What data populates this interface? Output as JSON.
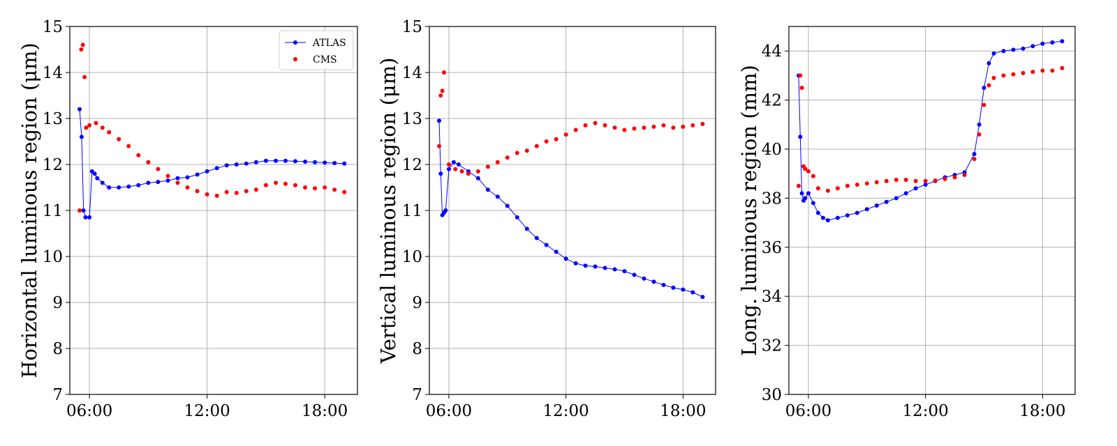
{
  "colors": {
    "ATLAS": "#0000ff",
    "CMS": "#ff0000",
    "grid": "#b0b0b0",
    "axes": "#000000"
  },
  "legend": {
    "placement": "top-right",
    "entries": [
      "ATLAS",
      "CMS"
    ]
  },
  "chart_data": [
    {
      "type": "scatter",
      "panel": "left",
      "ylabel": "Horizontal luminous region (μm)",
      "xlabel": "",
      "xlim": [
        "05:00",
        "19:40"
      ],
      "ylim": [
        7,
        15
      ],
      "xticks": [
        "06:00",
        "12:00",
        "18:00"
      ],
      "yticks": [
        "7",
        "8",
        "9",
        "10",
        "11",
        "12",
        "13",
        "14",
        "15"
      ],
      "grid": true,
      "legend": true,
      "series": [
        {
          "name": "ATLAS",
          "style": "line+markers",
          "x": [
            "05:30",
            "05:36",
            "05:42",
            "05:48",
            "06:00",
            "06:08",
            "06:16",
            "06:24",
            "06:40",
            "07:00",
            "07:30",
            "08:00",
            "08:30",
            "09:00",
            "09:30",
            "10:00",
            "10:30",
            "11:00",
            "11:30",
            "12:00",
            "12:30",
            "13:00",
            "13:30",
            "14:00",
            "14:30",
            "15:00",
            "15:30",
            "16:00",
            "16:30",
            "17:00",
            "17:30",
            "18:00",
            "18:30",
            "19:00"
          ],
          "y": [
            13.2,
            12.6,
            11.0,
            10.85,
            10.85,
            11.85,
            11.8,
            11.7,
            11.6,
            11.5,
            11.5,
            11.52,
            11.55,
            11.6,
            11.62,
            11.65,
            11.7,
            11.72,
            11.78,
            11.85,
            11.92,
            11.98,
            12.0,
            12.02,
            12.05,
            12.08,
            12.08,
            12.08,
            12.07,
            12.06,
            12.05,
            12.04,
            12.03,
            12.02
          ]
        },
        {
          "name": "CMS",
          "style": "markers",
          "x": [
            "05:30",
            "05:35",
            "05:40",
            "05:45",
            "05:50",
            "06:00",
            "06:20",
            "06:40",
            "07:00",
            "07:30",
            "08:00",
            "08:30",
            "09:00",
            "09:30",
            "10:00",
            "10:30",
            "11:00",
            "11:30",
            "12:00",
            "12:30",
            "13:00",
            "13:30",
            "14:00",
            "14:30",
            "15:00",
            "15:30",
            "16:00",
            "16:30",
            "17:00",
            "17:30",
            "18:00",
            "18:30",
            "19:00"
          ],
          "y": [
            11.0,
            14.5,
            14.6,
            13.9,
            12.8,
            12.85,
            12.9,
            12.8,
            12.7,
            12.55,
            12.4,
            12.2,
            12.05,
            11.9,
            11.75,
            11.6,
            11.5,
            11.42,
            11.35,
            11.32,
            11.4,
            11.38,
            11.42,
            11.45,
            11.55,
            11.6,
            11.58,
            11.55,
            11.5,
            11.48,
            11.5,
            11.45,
            11.4
          ]
        }
      ]
    },
    {
      "type": "scatter",
      "panel": "middle",
      "ylabel": "Vertical luminous region (μm)",
      "xlabel": "",
      "xlim": [
        "05:00",
        "19:40"
      ],
      "ylim": [
        7,
        15
      ],
      "xticks": [
        "06:00",
        "12:00",
        "18:00"
      ],
      "yticks": [
        "7",
        "8",
        "9",
        "10",
        "11",
        "12",
        "13",
        "14",
        "15"
      ],
      "grid": true,
      "legend": false,
      "series": [
        {
          "name": "ATLAS",
          "style": "line+markers",
          "x": [
            "05:30",
            "05:35",
            "05:40",
            "05:45",
            "05:50",
            "06:00",
            "06:15",
            "06:30",
            "07:00",
            "07:30",
            "08:00",
            "08:30",
            "09:00",
            "09:30",
            "10:00",
            "10:30",
            "11:00",
            "11:30",
            "12:00",
            "12:30",
            "13:00",
            "13:30",
            "14:00",
            "14:30",
            "15:00",
            "15:30",
            "16:00",
            "16:30",
            "17:00",
            "17:30",
            "18:00",
            "18:30",
            "19:00"
          ],
          "y": [
            12.95,
            11.8,
            10.9,
            10.95,
            11.0,
            11.9,
            12.05,
            12.0,
            11.85,
            11.7,
            11.45,
            11.3,
            11.1,
            10.85,
            10.6,
            10.4,
            10.25,
            10.1,
            9.95,
            9.85,
            9.8,
            9.78,
            9.75,
            9.72,
            9.68,
            9.6,
            9.52,
            9.45,
            9.38,
            9.32,
            9.28,
            9.22,
            9.12
          ]
        },
        {
          "name": "CMS",
          "style": "markers",
          "x": [
            "05:30",
            "05:35",
            "05:40",
            "05:45",
            "06:00",
            "06:20",
            "06:40",
            "07:00",
            "07:30",
            "08:00",
            "08:30",
            "09:00",
            "09:30",
            "10:00",
            "10:30",
            "11:00",
            "11:30",
            "12:00",
            "12:30",
            "13:00",
            "13:30",
            "14:00",
            "14:30",
            "15:00",
            "15:30",
            "16:00",
            "16:30",
            "17:00",
            "17:30",
            "18:00",
            "18:30",
            "19:00"
          ],
          "y": [
            12.4,
            13.5,
            13.6,
            14.0,
            12.0,
            11.9,
            11.85,
            11.8,
            11.85,
            11.95,
            12.05,
            12.15,
            12.25,
            12.3,
            12.4,
            12.5,
            12.55,
            12.65,
            12.75,
            12.85,
            12.9,
            12.85,
            12.8,
            12.75,
            12.78,
            12.8,
            12.82,
            12.85,
            12.8,
            12.82,
            12.85,
            12.88
          ]
        }
      ]
    },
    {
      "type": "scatter",
      "panel": "right",
      "ylabel": "Long. luminous region (mm)",
      "xlabel": "",
      "xlim": [
        "05:00",
        "19:40"
      ],
      "ylim": [
        30,
        45
      ],
      "xticks": [
        "06:00",
        "12:00",
        "18:00"
      ],
      "yticks": [
        "30",
        "32",
        "34",
        "36",
        "38",
        "40",
        "42",
        "44"
      ],
      "grid": true,
      "legend": false,
      "series": [
        {
          "name": "ATLAS",
          "style": "line+markers",
          "x": [
            "05:30",
            "05:35",
            "05:40",
            "05:45",
            "05:50",
            "06:00",
            "06:15",
            "06:30",
            "06:45",
            "07:00",
            "07:30",
            "08:00",
            "08:30",
            "09:00",
            "09:30",
            "10:00",
            "10:30",
            "11:00",
            "11:30",
            "12:00",
            "12:30",
            "13:00",
            "13:30",
            "14:00",
            "14:30",
            "14:45",
            "15:00",
            "15:15",
            "15:30",
            "16:00",
            "16:30",
            "17:00",
            "17:30",
            "18:00",
            "18:30",
            "19:00"
          ],
          "y": [
            43.0,
            40.5,
            38.2,
            37.9,
            38.0,
            38.2,
            37.8,
            37.4,
            37.2,
            37.1,
            37.2,
            37.3,
            37.4,
            37.55,
            37.7,
            37.85,
            38.0,
            38.2,
            38.4,
            38.55,
            38.7,
            38.85,
            38.95,
            39.05,
            39.8,
            41.0,
            42.5,
            43.5,
            43.9,
            44.0,
            44.05,
            44.1,
            44.2,
            44.3,
            44.35,
            44.4
          ]
        },
        {
          "name": "CMS",
          "style": "markers",
          "x": [
            "05:30",
            "05:35",
            "05:40",
            "05:45",
            "05:50",
            "06:00",
            "06:15",
            "06:30",
            "07:00",
            "07:30",
            "08:00",
            "08:30",
            "09:00",
            "09:30",
            "10:00",
            "10:30",
            "11:00",
            "11:30",
            "12:00",
            "12:30",
            "13:00",
            "13:30",
            "14:00",
            "14:30",
            "14:45",
            "15:00",
            "15:15",
            "15:30",
            "16:00",
            "16:30",
            "17:00",
            "17:30",
            "18:00",
            "18:30",
            "19:00"
          ],
          "y": [
            38.5,
            43.0,
            42.5,
            39.3,
            39.2,
            39.1,
            38.9,
            38.4,
            38.3,
            38.4,
            38.5,
            38.55,
            38.6,
            38.65,
            38.7,
            38.75,
            38.75,
            38.7,
            38.7,
            38.72,
            38.78,
            38.85,
            38.95,
            39.6,
            40.6,
            41.8,
            42.6,
            42.9,
            43.0,
            43.05,
            43.1,
            43.15,
            43.2,
            43.2,
            43.3
          ]
        }
      ]
    }
  ]
}
